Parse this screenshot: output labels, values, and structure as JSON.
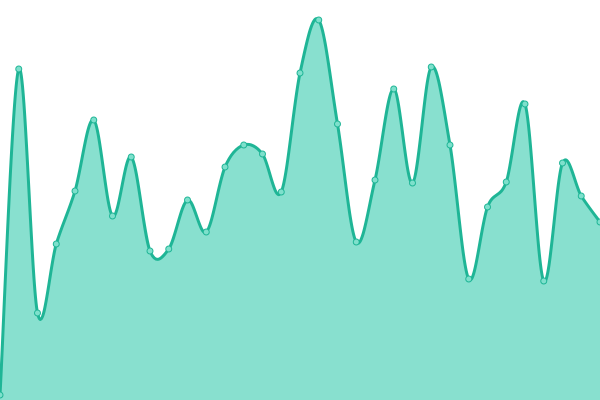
{
  "chart_data": {
    "type": "area",
    "x": [
      0,
      1,
      2,
      3,
      4,
      5,
      6,
      7,
      8,
      9,
      10,
      11,
      12,
      13,
      14,
      15,
      16,
      17,
      18,
      19,
      20,
      21,
      22,
      23,
      24,
      25,
      26,
      27,
      28,
      29,
      30,
      31,
      32
    ],
    "values": [
      5,
      331,
      87,
      156,
      209,
      280,
      184,
      243,
      149,
      151,
      200,
      168,
      233,
      255,
      246,
      208,
      327,
      380,
      276,
      158,
      220,
      311,
      217,
      333,
      255,
      121,
      193,
      218,
      296,
      119,
      237,
      204,
      178
    ],
    "xlim": [
      0,
      32
    ],
    "ylim": [
      0,
      400
    ],
    "fill_color": "#88e0cf",
    "color": "#1fb596",
    "marker_color": "#7ee0cc"
  }
}
